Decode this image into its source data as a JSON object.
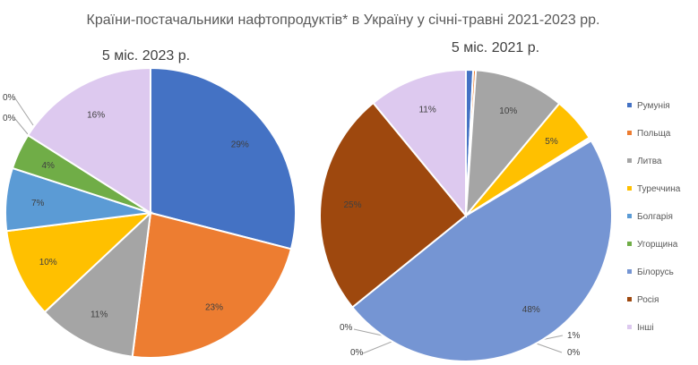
{
  "chart_data": {
    "title": "Країни-постачальники нафтопродуктів* в Україну у січні-травні 2021-2023 рр.",
    "legend_position": "right",
    "legend": [
      {
        "name": "Румунія",
        "color": "#4472C4"
      },
      {
        "name": "Польща",
        "color": "#ED7D31"
      },
      {
        "name": "Литва",
        "color": "#A5A5A5"
      },
      {
        "name": "Туреччина",
        "color": "#FFC000"
      },
      {
        "name": "Болгарія",
        "color": "#5B9BD5"
      },
      {
        "name": "Угорщина",
        "color": "#70AD47"
      },
      {
        "name": "Білорусь",
        "color": "#7595D3"
      },
      {
        "name": "Росія",
        "color": "#9E480E"
      },
      {
        "name": "Інші",
        "color": "#DDC9EF"
      }
    ],
    "charts": [
      {
        "type": "pie",
        "title": "5 міс. 2023 р.",
        "slices": [
          {
            "name": "Румунія",
            "value": 29,
            "label": "29%"
          },
          {
            "name": "Польща",
            "value": 23,
            "label": "23%"
          },
          {
            "name": "Литва",
            "value": 11,
            "label": "11%"
          },
          {
            "name": "Туреччина",
            "value": 10,
            "label": "10%"
          },
          {
            "name": "Болгарія",
            "value": 7,
            "label": "7%"
          },
          {
            "name": "Угорщина",
            "value": 4,
            "label": "4%"
          },
          {
            "name": "Білорусь",
            "value": 0,
            "label": "0%"
          },
          {
            "name": "Росія",
            "value": 0,
            "label": "0%"
          },
          {
            "name": "Інші",
            "value": 16,
            "label": "16%"
          }
        ]
      },
      {
        "type": "pie",
        "title": "5 міс. 2021 р.",
        "slices": [
          {
            "name": "Румунія",
            "value": 0.8,
            "label": "1%"
          },
          {
            "name": "Польща",
            "value": 0.3,
            "label": "0%"
          },
          {
            "name": "Литва",
            "value": 10,
            "label": "10%"
          },
          {
            "name": "Туреччина",
            "value": 5,
            "label": "5%"
          },
          {
            "name": "Болгарія",
            "value": 0.2,
            "label": "0%"
          },
          {
            "name": "Угорщина",
            "value": 0.2,
            "label": "0%"
          },
          {
            "name": "Білорусь",
            "value": 48,
            "label": "48%"
          },
          {
            "name": "Росія",
            "value": 25,
            "label": "25%"
          },
          {
            "name": "Інші",
            "value": 11,
            "label": "11%"
          }
        ]
      }
    ]
  }
}
